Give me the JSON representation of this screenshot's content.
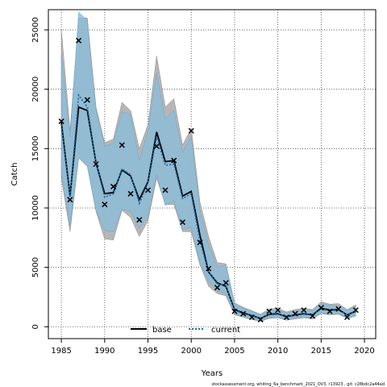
{
  "chart_data": {
    "type": "line",
    "xlabel": "Years",
    "ylabel": "Catch",
    "xlim": [
      1983.5,
      2021.3
    ],
    "ylim": [
      -1000,
      26700
    ],
    "x_ticks": [
      1985,
      1990,
      1995,
      2000,
      2005,
      2010,
      2015,
      2020
    ],
    "y_ticks": [
      0,
      5000,
      10000,
      15000,
      20000,
      25000
    ],
    "grid": true,
    "legend_position": "bottom-center",
    "caption": "stockassessment.org,  whiting_6a_benchmark_2021_OV3,  r13923 ,  git: c28bdc2a44ad",
    "colors": {
      "base_band": "#a9a9a9",
      "current_band": "#8bbdda",
      "base_line": "#000000",
      "current_line": "#1f6fa8",
      "observation": "#000000"
    },
    "years": [
      1985,
      1986,
      1987,
      1988,
      1989,
      1990,
      1991,
      1992,
      1993,
      1994,
      1995,
      1996,
      1997,
      1998,
      1999,
      2000,
      2001,
      2002,
      2003,
      2004,
      2005,
      2006,
      2007,
      2008,
      2009,
      2010,
      2011,
      2012,
      2013,
      2014,
      2015,
      2016,
      2017,
      2018,
      2019
    ],
    "observations": [
      17300,
      10700,
      24100,
      19100,
      13700,
      10300,
      11800,
      15300,
      11200,
      9000,
      11500,
      15200,
      11500,
      14000,
      8800,
      16500,
      7100,
      4900,
      3300,
      3700,
      1300,
      1100,
      800,
      600,
      1300,
      1400,
      800,
      1100,
      1400,
      900,
      1600,
      1300,
      1500,
      800,
      1400
    ],
    "series": [
      {
        "name": "base",
        "values": [
          17200,
          11000,
          18500,
          18200,
          13800,
          11200,
          11300,
          13200,
          12700,
          10700,
          12200,
          16400,
          13900,
          14000,
          11000,
          11400,
          7700,
          4600,
          3700,
          3400,
          1450,
          1150,
          950,
          700,
          1050,
          1100,
          850,
          1000,
          1100,
          1000,
          1550,
          1400,
          1450,
          1000,
          1300
        ],
        "lower": [
          12500,
          8000,
          14200,
          13500,
          9700,
          7400,
          7300,
          9800,
          9200,
          7600,
          8900,
          12500,
          10300,
          10300,
          8000,
          8000,
          5200,
          3400,
          2800,
          2600,
          1000,
          800,
          600,
          450,
          700,
          750,
          550,
          650,
          750,
          650,
          1100,
          1000,
          1050,
          700,
          900
        ],
        "upper": [
          25000,
          16500,
          26000,
          26000,
          18500,
          15500,
          15800,
          18900,
          18200,
          15000,
          17000,
          22800,
          18500,
          19200,
          15300,
          16700,
          10500,
          7600,
          5400,
          5300,
          2000,
          1650,
          1350,
          1050,
          1500,
          1550,
          1250,
          1450,
          1550,
          1450,
          2100,
          1900,
          1950,
          1450,
          1850
        ]
      },
      {
        "name": "current",
        "values": [
          17000,
          10900,
          19500,
          18500,
          13800,
          10900,
          11200,
          13300,
          12800,
          10400,
          12100,
          16000,
          13600,
          13700,
          10800,
          11200,
          7200,
          4600,
          3600,
          3500,
          1400,
          1100,
          950,
          700,
          1000,
          1050,
          850,
          950,
          1050,
          1000,
          1500,
          1350,
          1400,
          1000,
          1250
        ],
        "lower": [
          13000,
          8500,
          14200,
          13500,
          9800,
          8100,
          8000,
          9900,
          9700,
          8300,
          9300,
          12800,
          10200,
          10600,
          8200,
          8400,
          5400,
          3800,
          3000,
          2800,
          1100,
          850,
          700,
          500,
          800,
          800,
          650,
          750,
          850,
          750,
          1200,
          1050,
          1100,
          750,
          950
        ],
        "upper": [
          23000,
          16000,
          26500,
          25800,
          18300,
          15200,
          15500,
          18100,
          17900,
          14000,
          16500,
          21400,
          17500,
          18200,
          14700,
          16000,
          9800,
          6900,
          5000,
          5200,
          1900,
          1550,
          1300,
          1000,
          1400,
          1450,
          1150,
          1350,
          1400,
          1350,
          1950,
          1800,
          1800,
          1350,
          1700
        ]
      }
    ]
  }
}
